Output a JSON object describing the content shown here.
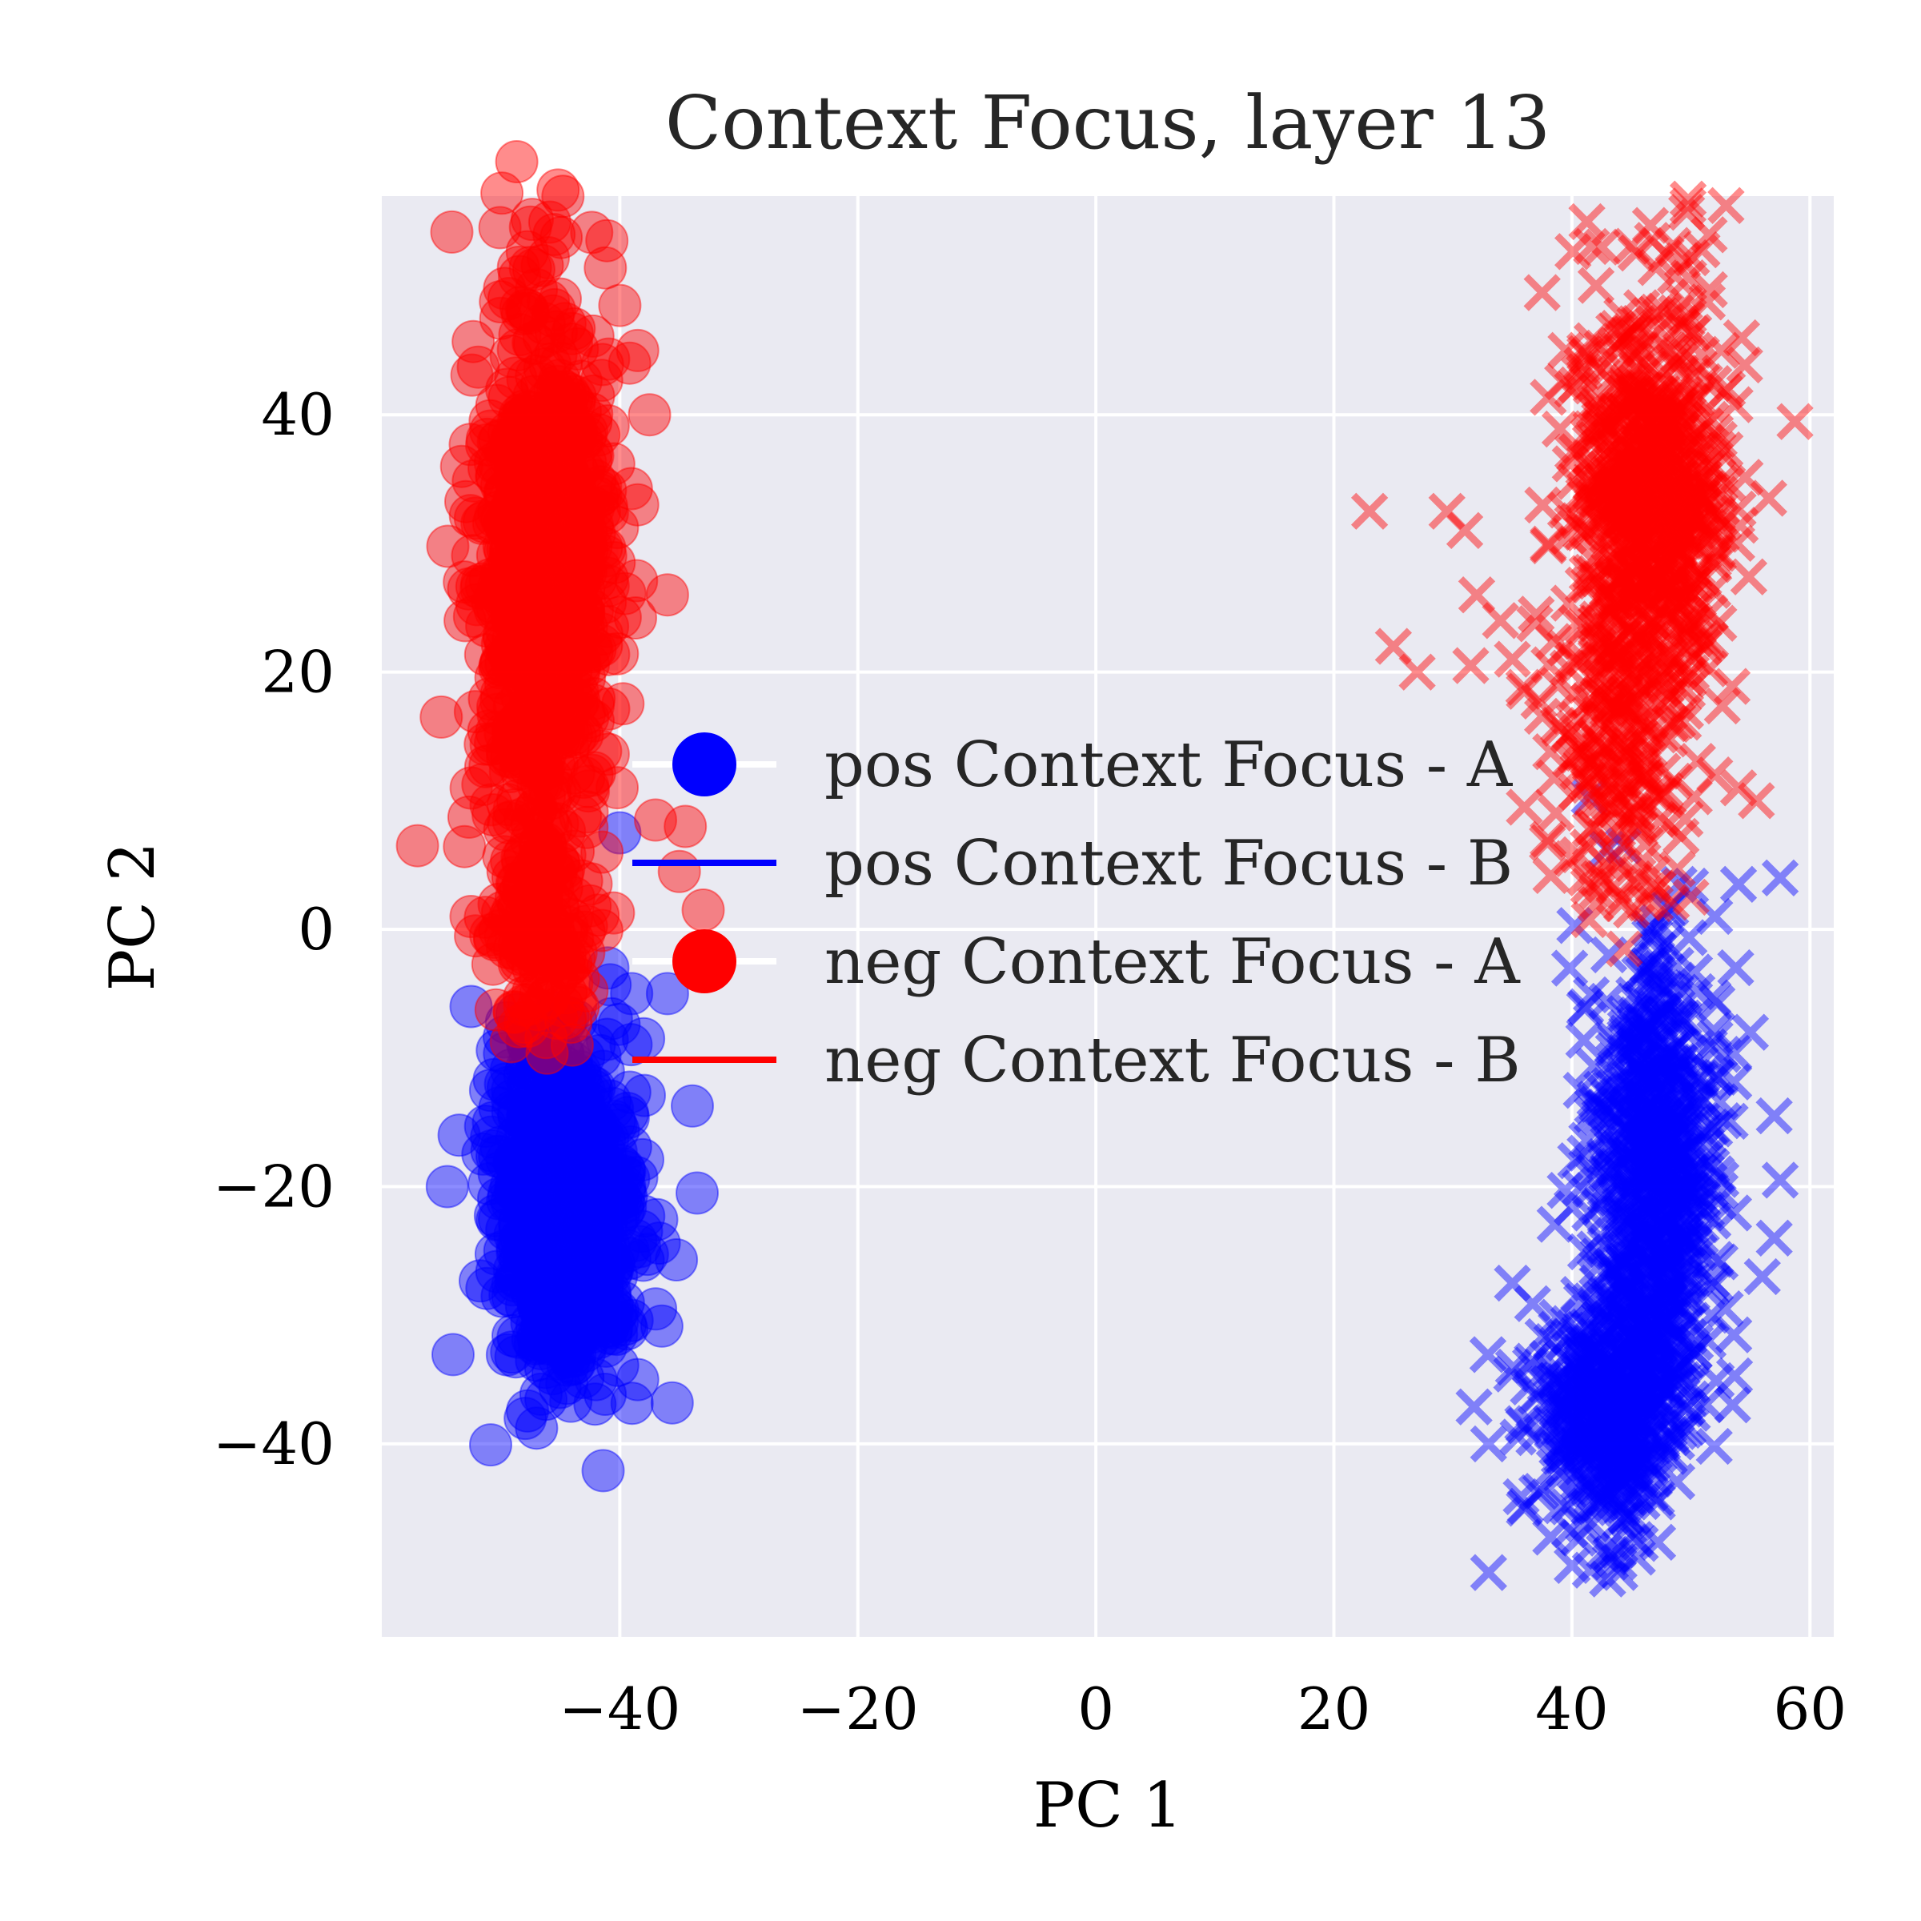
{
  "chart_data": {
    "type": "scatter",
    "title": "Context Focus, layer 13",
    "xlabel": "PC 1",
    "ylabel": "PC 2",
    "xlim": [
      -60,
      62
    ],
    "ylim": [
      -55,
      57
    ],
    "xticks": [
      -40,
      -20,
      0,
      20,
      40,
      60
    ],
    "yticks": [
      -40,
      -20,
      0,
      20,
      40
    ],
    "xtick_labels": [
      "−40",
      "−20",
      "0",
      "20",
      "40",
      "60"
    ],
    "ytick_labels": [
      "−40",
      "−20",
      "0",
      "20",
      "40"
    ],
    "grid": true,
    "legend_position": "center",
    "series": [
      {
        "name": "pos Context Focus - A",
        "color": "#0000ff",
        "marker": "circle",
        "alpha": 0.45,
        "clusters": [
          {
            "cx": -44.5,
            "cy": -22,
            "sx": 2.8,
            "sy": 6.5,
            "n": 700
          }
        ],
        "outliers": [
          [
            -40,
            7.5
          ],
          [
            -41,
            -3
          ],
          [
            -39,
            -5
          ],
          [
            -36,
            -5
          ],
          [
            -38,
            -8.5
          ],
          [
            -33.5,
            -20.5
          ],
          [
            -52.5,
            -6
          ],
          [
            -53.5,
            -16
          ],
          [
            -54.5,
            -20
          ],
          [
            -47,
            -33.5
          ],
          [
            -42,
            -35
          ],
          [
            -38.5,
            -35
          ]
        ]
      },
      {
        "name": "pos Context Focus - B",
        "color": "#0000ff",
        "marker": "x",
        "alpha": 0.45,
        "clusters": [
          {
            "cx": 47,
            "cy": -18,
            "sx": 2.6,
            "sy": 8,
            "n": 600
          },
          {
            "cx": 43.5,
            "cy": -37,
            "sx": 3.2,
            "sy": 5,
            "n": 500
          }
        ],
        "outliers": [
          [
            49,
            3.5
          ],
          [
            48,
            1.5
          ],
          [
            52,
            1
          ],
          [
            54,
            3.5
          ],
          [
            57.5,
            4
          ],
          [
            55,
            -8
          ],
          [
            57,
            -14.5
          ],
          [
            57.5,
            -19.5
          ],
          [
            57,
            -24
          ],
          [
            56,
            -27
          ],
          [
            35,
            -27.5
          ],
          [
            33,
            -40
          ],
          [
            33,
            -50
          ],
          [
            43,
            -50.5
          ],
          [
            36,
            -45
          ]
        ]
      },
      {
        "name": "neg Context Focus - A",
        "color": "#ff0000",
        "marker": "circle",
        "alpha": 0.45,
        "clusters": [
          {
            "cx": -46.5,
            "cy": 28,
            "sx": 2.8,
            "sy": 10.5,
            "n": 750
          },
          {
            "cx": -46.5,
            "cy": -1,
            "sx": 2.2,
            "sy": 4,
            "n": 120
          }
        ],
        "outliers": [
          [
            -50,
            47.5
          ],
          [
            -45,
            49
          ],
          [
            -40,
            48.5
          ],
          [
            -38.5,
            45
          ],
          [
            -37.5,
            40
          ],
          [
            -38.5,
            33
          ],
          [
            -36,
            26
          ],
          [
            -53,
            24
          ],
          [
            -55,
            16.5
          ],
          [
            -57,
            6.5
          ],
          [
            -52.5,
            1
          ],
          [
            -37,
            8.5
          ],
          [
            -34.5,
            8
          ],
          [
            -35,
            4.5
          ],
          [
            -33,
            1.5
          ],
          [
            -44,
            -9
          ],
          [
            -41.5,
            6
          ]
        ]
      },
      {
        "name": "neg Context Focus - B",
        "color": "#ff0000",
        "marker": "x",
        "alpha": 0.45,
        "clusters": [
          {
            "cx": 46.5,
            "cy": 33,
            "sx": 3.2,
            "sy": 8,
            "n": 750
          },
          {
            "cx": 44,
            "cy": 14,
            "sx": 3.2,
            "sy": 5.5,
            "n": 180
          }
        ],
        "outliers": [
          [
            23,
            32.5
          ],
          [
            29.5,
            32.5
          ],
          [
            31,
            31
          ],
          [
            32,
            26
          ],
          [
            34,
            24
          ],
          [
            25,
            22
          ],
          [
            27,
            20
          ],
          [
            31.5,
            20.5
          ],
          [
            35,
            21
          ],
          [
            37,
            24.5
          ],
          [
            36,
            18.5
          ],
          [
            37.5,
            49.5
          ],
          [
            39.5,
            45
          ],
          [
            36,
            9.5
          ],
          [
            38,
            7
          ],
          [
            40,
            5.5
          ],
          [
            42,
            2
          ],
          [
            45,
            1.5
          ],
          [
            47,
            2
          ],
          [
            50,
            2.5
          ],
          [
            52,
            12
          ],
          [
            54,
            11
          ],
          [
            55.5,
            10
          ]
        ]
      }
    ]
  },
  "legend_items": [
    {
      "label": "pos Context Focus - A",
      "color": "#0000ff",
      "marker": "circle"
    },
    {
      "label": "pos Context Focus - B",
      "color": "#0000ff",
      "marker": "line"
    },
    {
      "label": "neg Context Focus - A",
      "color": "#ff0000",
      "marker": "circle"
    },
    {
      "label": "neg Context Focus - B",
      "color": "#ff0000",
      "marker": "line"
    }
  ]
}
